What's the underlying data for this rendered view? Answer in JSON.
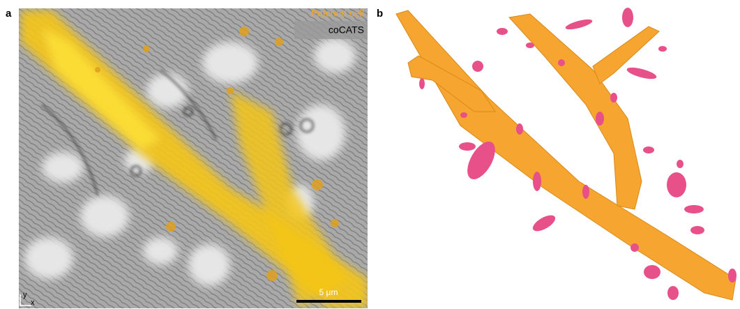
{
  "panels": [
    {
      "label": "a",
      "legend": [
        "Patched cell",
        "coCATS"
      ],
      "scale_bar": "5 μm",
      "axes": [
        "y",
        "x"
      ]
    },
    {
      "label": "b"
    }
  ]
}
